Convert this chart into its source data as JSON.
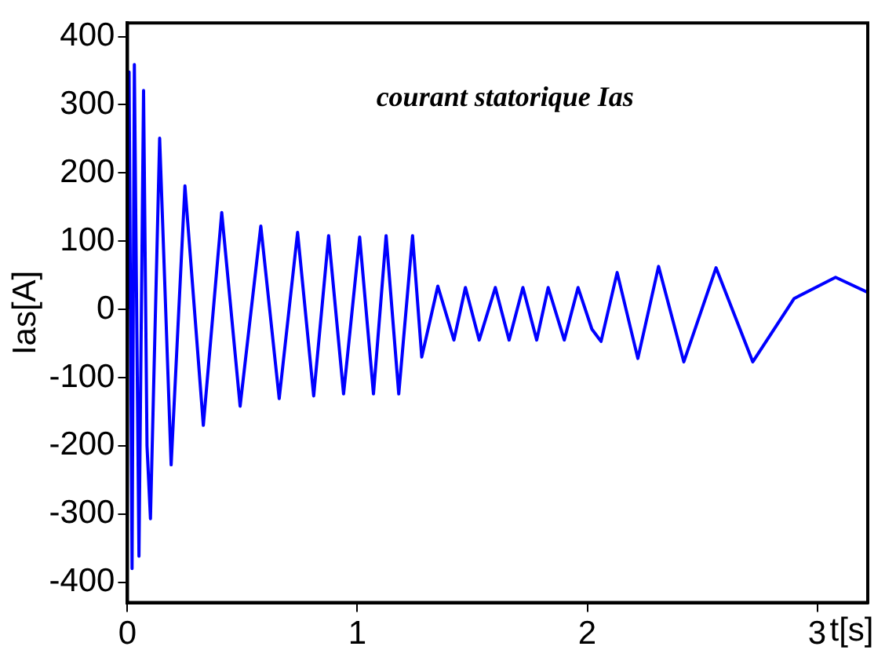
{
  "chart_data": {
    "type": "line",
    "title": "courant statorique Ias",
    "xlabel": "t[s]",
    "ylabel": "Ias[A]",
    "x": [
      0,
      0.007,
      0.02,
      0.03,
      0.05,
      0.07,
      0.085,
      0.1,
      0.14,
      0.19,
      0.25,
      0.33,
      0.41,
      0.49,
      0.58,
      0.66,
      0.74,
      0.81,
      0.875,
      0.94,
      1.01,
      1.07,
      1.125,
      1.18,
      1.24,
      1.28,
      1.35,
      1.42,
      1.47,
      1.53,
      1.6,
      1.66,
      1.72,
      1.78,
      1.83,
      1.9,
      1.96,
      2.02,
      2.06,
      2.13,
      2.22,
      2.31,
      2.42,
      2.56,
      2.72,
      2.9,
      3.08,
      3.22
    ],
    "series": [
      {
        "color": "#0000ff",
        "values": [
          0,
          348,
          -380,
          359,
          -362,
          321,
          -200,
          -307,
          251,
          -228,
          181,
          -170,
          142,
          -142,
          122,
          -131,
          113,
          -127,
          108,
          -124,
          106,
          -124,
          108,
          -124,
          108,
          -70,
          34,
          -45,
          32,
          -45,
          32,
          -45,
          32,
          -45,
          32,
          -45,
          32,
          -29,
          -47,
          54,
          -72,
          63,
          -77,
          61,
          -77,
          16,
          47,
          25
        ]
      }
    ],
    "xlim": [
      0,
      3.22
    ],
    "ylim": [
      -430,
      420
    ],
    "xticks": [
      0,
      1,
      2,
      3
    ],
    "yticks": [
      -400,
      -300,
      -200,
      -100,
      0,
      100,
      200,
      300,
      400
    ],
    "grid": false,
    "legend": false,
    "marker": "none",
    "line_style": "solid"
  }
}
